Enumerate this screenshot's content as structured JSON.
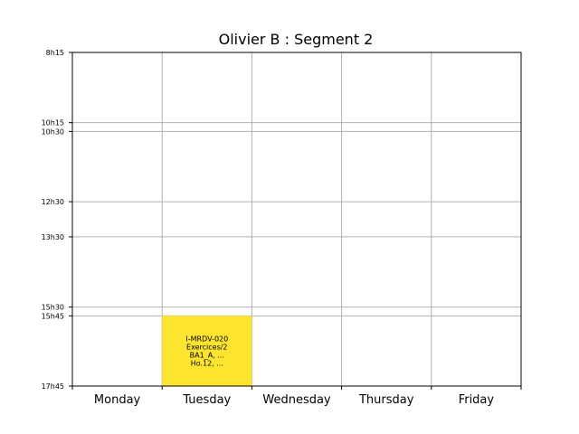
{
  "chart_data": {
    "type": "timetable",
    "title": "Olivier B : Segment 2",
    "days": [
      "Monday",
      "Tuesday",
      "Wednesday",
      "Thursday",
      "Friday"
    ],
    "y_ticks": [
      {
        "label": "8h15",
        "minutes": 495
      },
      {
        "label": "10h15",
        "minutes": 615
      },
      {
        "label": "10h30",
        "minutes": 630
      },
      {
        "label": "12h30",
        "minutes": 750
      },
      {
        "label": "13h30",
        "minutes": 810
      },
      {
        "label": "15h30",
        "minutes": 930
      },
      {
        "label": "15h45",
        "minutes": 945
      },
      {
        "label": "17h45",
        "minutes": 1065
      }
    ],
    "ylim": [
      495,
      1065
    ],
    "grid": true,
    "events": [
      {
        "day": "Tuesday",
        "start": "15h45",
        "end": "17h45",
        "start_minutes": 945,
        "end_minutes": 1065,
        "lines": [
          "I-MRDV-020",
          "Exercices/2",
          "BA1_A, ...",
          "Ho.12, ..."
        ],
        "color": "#fde52f"
      }
    ]
  },
  "colors": {
    "grid": "#b0b0b0",
    "axes": "#000000"
  }
}
